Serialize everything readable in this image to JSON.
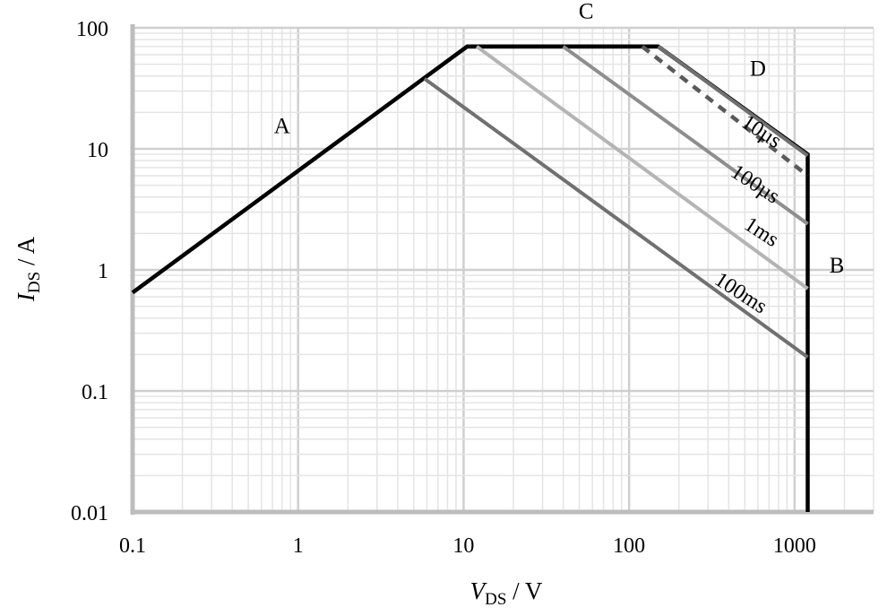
{
  "chart_data": {
    "type": "line",
    "xscale": "log",
    "yscale": "log",
    "xlim": [
      0.1,
      3000
    ],
    "ylim": [
      0.01,
      100
    ],
    "grid": true,
    "xlabel": {
      "main": "V",
      "sub": "DS",
      "unit": " / V"
    },
    "ylabel": {
      "main": "I",
      "sub": "DS",
      "unit": " / A"
    },
    "xticks": [
      {
        "value": 0.1,
        "label": "0.1"
      },
      {
        "value": 1,
        "label": "1"
      },
      {
        "value": 10,
        "label": "10"
      },
      {
        "value": 100,
        "label": "100"
      },
      {
        "value": 1000,
        "label": "1000"
      }
    ],
    "yticks": [
      {
        "value": 0.01,
        "label": "0.01"
      },
      {
        "value": 0.1,
        "label": "0.1"
      },
      {
        "value": 1,
        "label": "1"
      },
      {
        "value": 10,
        "label": "10"
      },
      {
        "value": 100,
        "label": "100"
      }
    ],
    "series": [
      {
        "id": "soa-boundary",
        "color": "#000000",
        "width": 4.5,
        "dash": "",
        "points": [
          [
            0.1,
            0.65
          ],
          [
            10.5,
            70
          ],
          [
            150,
            70
          ],
          [
            1200,
            9
          ],
          [
            1200,
            0.01
          ]
        ]
      },
      {
        "id": "dc",
        "color": "#000000",
        "width": 4.5,
        "dash": "",
        "points": [
          [
            10.5,
            70
          ],
          [
            150,
            70
          ]
        ]
      },
      {
        "id": "10us",
        "color": "#707070",
        "width": 4,
        "dash": "",
        "points": [
          [
            150,
            70
          ],
          [
            1200,
            8.8
          ]
        ]
      },
      {
        "id": "dashed",
        "color": "#5a5a5a",
        "width": 4.5,
        "dash": "10,8",
        "points": [
          [
            120,
            70
          ],
          [
            1200,
            6
          ]
        ]
      },
      {
        "id": "100us",
        "color": "#8e8e8e",
        "width": 4,
        "dash": "",
        "points": [
          [
            40,
            70
          ],
          [
            1200,
            2.4
          ]
        ]
      },
      {
        "id": "1ms",
        "color": "#b4b4b4",
        "width": 4,
        "dash": "",
        "points": [
          [
            12,
            70
          ],
          [
            1200,
            0.7
          ]
        ]
      },
      {
        "id": "100ms",
        "color": "#707070",
        "width": 4,
        "dash": "",
        "points": [
          [
            5.8,
            38
          ],
          [
            1200,
            0.19
          ]
        ]
      }
    ],
    "annotations": [
      {
        "text": "A",
        "x": 0.8,
        "y": 13.5,
        "class": "region",
        "rotate": 0
      },
      {
        "text": "B",
        "x": 1800,
        "y": 0.95,
        "class": "region",
        "rotate": 0
      },
      {
        "text": "C",
        "x": 55,
        "y": 120,
        "class": "region",
        "rotate": 0
      },
      {
        "text": "D",
        "x": 600,
        "y": 40,
        "class": "region",
        "rotate": 0
      },
      {
        "text": "10µs",
        "x": 600,
        "y": 12.5,
        "class": "curve-label",
        "rotate": 33
      },
      {
        "text": "100µs",
        "x": 550,
        "y": 4.6,
        "class": "curve-label",
        "rotate": 33
      },
      {
        "text": "1ms",
        "x": 600,
        "y": 1.85,
        "class": "curve-label",
        "rotate": 33
      },
      {
        "text": "100ms",
        "x": 450,
        "y": 0.58,
        "class": "curve-label",
        "rotate": 33
      }
    ]
  }
}
